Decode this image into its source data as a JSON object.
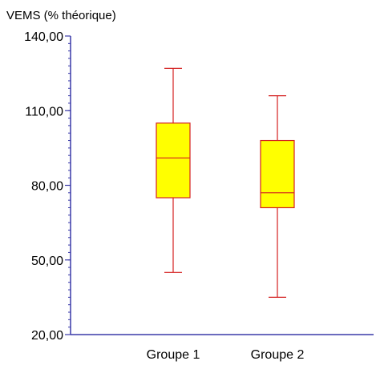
{
  "chart_data": {
    "type": "box",
    "title": "",
    "ylabel": "VEMS (% théorique)",
    "xlabel": "",
    "ylim": [
      20,
      140
    ],
    "y_ticks": [
      {
        "value": 20,
        "label": "20,00"
      },
      {
        "value": 50,
        "label": "50,00"
      },
      {
        "value": 80,
        "label": "80,00"
      },
      {
        "value": 110,
        "label": "110,00"
      },
      {
        "value": 140,
        "label": "140,00"
      }
    ],
    "minor_tick_step": 3,
    "categories": [
      "Groupe 1",
      "Groupe 2"
    ],
    "boxes": [
      {
        "name": "Groupe 1",
        "min": 45,
        "q1": 75,
        "median": 91,
        "q3": 105,
        "max": 127
      },
      {
        "name": "Groupe 2",
        "min": 35,
        "q1": 71,
        "median": 77,
        "q3": 98,
        "max": 116
      }
    ],
    "colors": {
      "axis": "#3a3aa8",
      "box_fill": "#ffff00",
      "box_stroke": "#d42020"
    },
    "grid": false,
    "legend": "none"
  }
}
